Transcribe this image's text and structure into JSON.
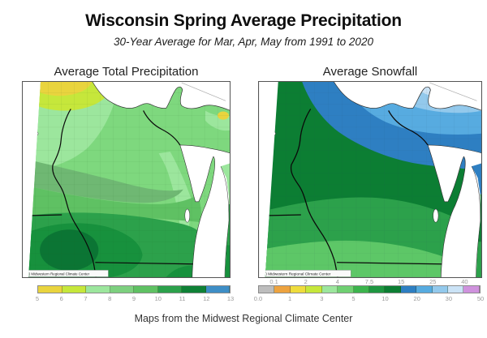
{
  "header": {
    "title": "Wisconsin Spring Average Precipitation",
    "subtitle": "30-Year Average for Mar, Apr, May from 1991 to 2020"
  },
  "panels": {
    "precipitation": {
      "heading": "Average Total Precipitation",
      "watermark": "(C) Midwestern Regional Climate Center",
      "legend": {
        "label_mode": "below",
        "boundaries": [
          "5",
          "6",
          "7",
          "8",
          "9",
          "10",
          "11",
          "12",
          "13"
        ],
        "colors": [
          "#e9d43e",
          "#c6e73b",
          "#9ce69d",
          "#7dd07f",
          "#5fc163",
          "#2ca14b",
          "#0f8136",
          "#3e8ec6"
        ]
      }
    },
    "snowfall": {
      "heading": "Average Snowfall",
      "watermark": "(C) Midwestern Regional Climate Center",
      "legend": {
        "label_mode": "alternate",
        "boundaries": [
          "0.0",
          "0.1",
          "1",
          "2",
          "3",
          "4",
          "5",
          "7.5",
          "10",
          "15",
          "20",
          "25",
          "30",
          "40",
          "50"
        ],
        "colors": [
          "#bdbdbd",
          "#eda33f",
          "#eedc3d",
          "#c6e73b",
          "#9ce69d",
          "#6fd072",
          "#3cb44d",
          "#1e9641",
          "#0c7e33",
          "#2e7fc2",
          "#57abe0",
          "#93c9ec",
          "#cbe3f6",
          "#cf92dd"
        ]
      }
    }
  },
  "footer": {
    "caption": "Maps from the Midwest Regional Climate Center"
  }
}
